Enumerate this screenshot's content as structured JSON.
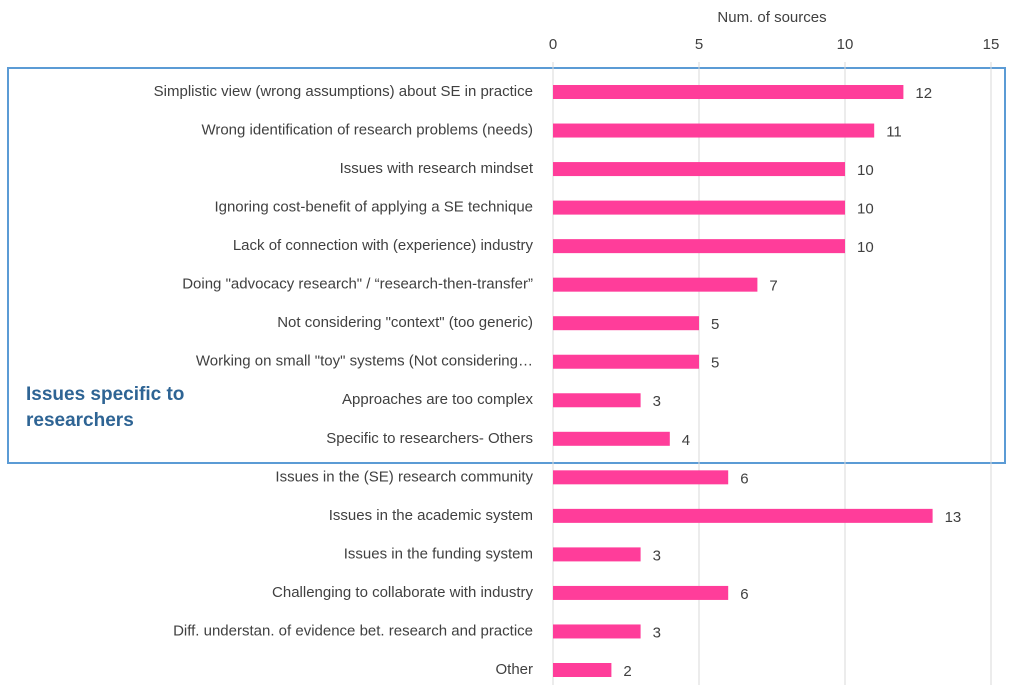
{
  "chart_data": {
    "type": "bar",
    "orientation": "horizontal",
    "x_label": "Num. of sources",
    "annotation": "Issues specific to researchers",
    "categories": [
      "Simplistic view (wrong assumptions) about SE in practice",
      "Wrong identification of research problems (needs)",
      "Issues with research mindset",
      "Ignoring cost-benefit of applying a SE technique",
      "Lack of connection with (experience) industry",
      "Doing \"advocacy research\" / “research-then-transfer”",
      "Not considering \"context\" (too generic)",
      "Working on small \"toy\" systems (Not considering…",
      "Approaches are too complex",
      "Specific to researchers- Others",
      "Issues in the (SE) research community",
      "Issues in the academic system",
      "Issues in the funding system",
      "Challenging to collaborate with industry",
      "Diff. understan. of evidence bet. research and practice",
      "Other"
    ],
    "values": [
      12,
      11,
      10,
      10,
      10,
      7,
      5,
      5,
      3,
      4,
      6,
      13,
      3,
      6,
      3,
      2
    ],
    "color": "#ff3d9a",
    "xlim": [
      0,
      15
    ],
    "xticks": [
      0,
      5,
      10,
      15
    ],
    "grid": true
  }
}
